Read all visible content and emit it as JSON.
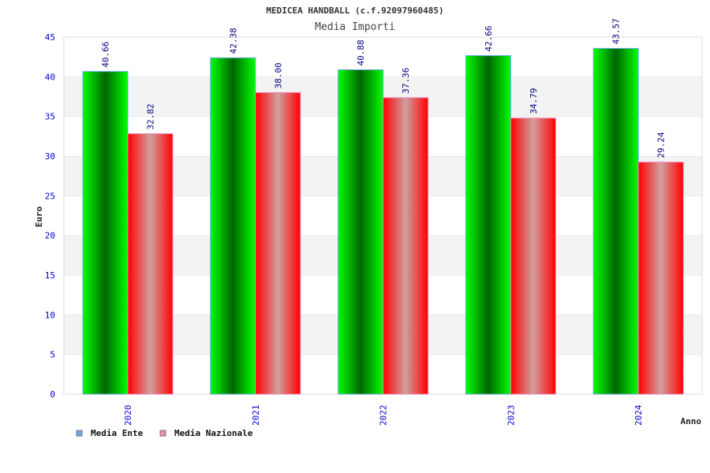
{
  "chart_data": {
    "type": "bar",
    "title": "MEDICEA HANDBALL (c.f.92097960485)",
    "subtitle": "Media Importi",
    "xlabel": "Anno",
    "ylabel": "Euro",
    "categories": [
      "2020",
      "2021",
      "2022",
      "2023",
      "2024"
    ],
    "series": [
      {
        "name": "Media Ente",
        "values": [
          40.66,
          42.38,
          40.88,
          42.66,
          43.57
        ],
        "labels": [
          "40.66",
          "42.38",
          "40.88",
          "42.66",
          "43.57"
        ],
        "legend_color": "#66aaee"
      },
      {
        "name": "Media Nazionale",
        "values": [
          32.82,
          38.0,
          37.36,
          34.79,
          29.24
        ],
        "labels": [
          "32.82",
          "38.00",
          "37.36",
          "34.79",
          "29.24"
        ],
        "legend_color": "#ee88bb"
      }
    ],
    "ylim": [
      0,
      45
    ],
    "yticks": [
      "0",
      "5",
      "10",
      "15",
      "20",
      "25",
      "30",
      "35",
      "40",
      "45"
    ],
    "grid": true,
    "legend_position": "bottom-left"
  }
}
